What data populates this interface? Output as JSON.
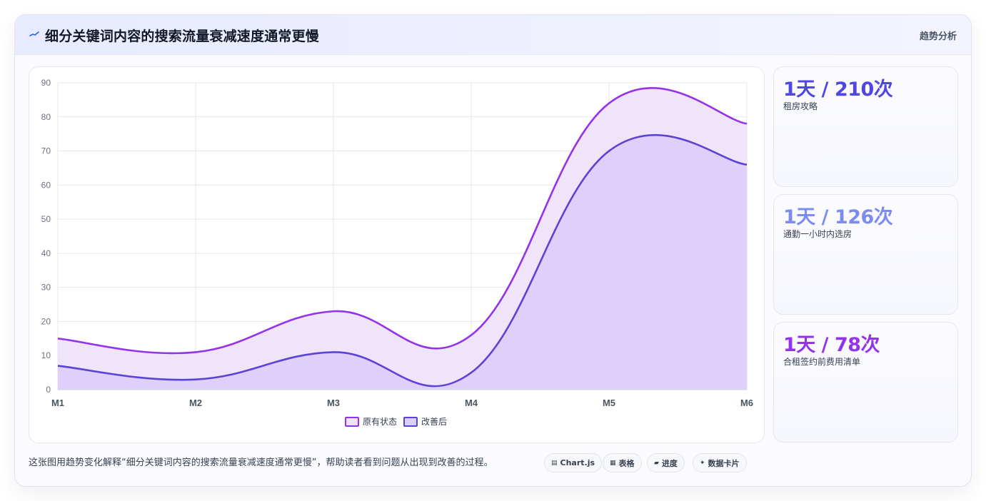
{
  "header": {
    "icon": "trend-line-icon",
    "title": "细分关键词内容的搜索流量衰减速度通常更慢",
    "right_link": "趋势分析"
  },
  "colors": {
    "series1_line": "#9333ea",
    "series1_fill": "#efe3fb",
    "series2_line": "#5b43d6",
    "series2_fill": "#dccffa",
    "stat1": "#4f46e5",
    "stat2": "#7b8cf0",
    "stat3": "#9333ea"
  },
  "chart_data": {
    "type": "area",
    "categories": [
      "M1",
      "M2",
      "M3",
      "M4",
      "M5",
      "M6"
    ],
    "series": [
      {
        "name": "原有状态",
        "values": [
          15,
          11,
          23,
          16,
          84,
          78
        ]
      },
      {
        "name": "改善后",
        "values": [
          7,
          3,
          11,
          5,
          70,
          66
        ]
      }
    ],
    "ylim": [
      0,
      90
    ],
    "yticks": [
      0,
      10,
      20,
      30,
      40,
      50,
      60,
      70,
      80,
      90
    ],
    "grid": true,
    "legend": "bottom"
  },
  "stats": [
    {
      "value": "1天 / 210次",
      "label": "租房攻略"
    },
    {
      "value": "1天 / 126次",
      "label": "通勤一小时内选房"
    },
    {
      "value": "1天 / 78次",
      "label": "合租签约前费用清单"
    }
  ],
  "footer": {
    "note": "这张图用趋势变化解释“细分关键词内容的搜索流量衰减速度通常更慢”，帮助读者看到问题从出现到改善的过程。",
    "chips": [
      {
        "icon": "chart-icon",
        "label": "Chart.js"
      },
      {
        "icon": "table-icon",
        "label": "表格"
      },
      {
        "icon": "progress-icon",
        "label": "进度"
      },
      {
        "icon": "sparkle-icon",
        "label": "数据卡片"
      }
    ]
  }
}
